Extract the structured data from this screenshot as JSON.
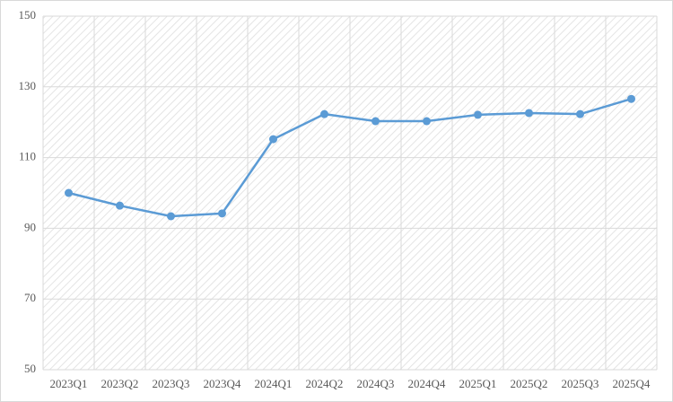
{
  "chart_data": {
    "type": "line",
    "categories": [
      "2023Q1",
      "2023Q2",
      "2023Q3",
      "2023Q4",
      "2024Q1",
      "2024Q2",
      "2024Q3",
      "2024Q4",
      "2025Q1",
      "2025Q2",
      "2025Q3",
      "2025Q4"
    ],
    "values": [
      100,
      96.4,
      93.4,
      94.2,
      115.2,
      122.3,
      120.3,
      120.3,
      122.1,
      122.6,
      122.3,
      126.6
    ],
    "color": "#5b9bd5",
    "ylim": [
      50,
      150
    ],
    "yticks": [
      50,
      70,
      90,
      110,
      130,
      150
    ],
    "grid": true
  }
}
